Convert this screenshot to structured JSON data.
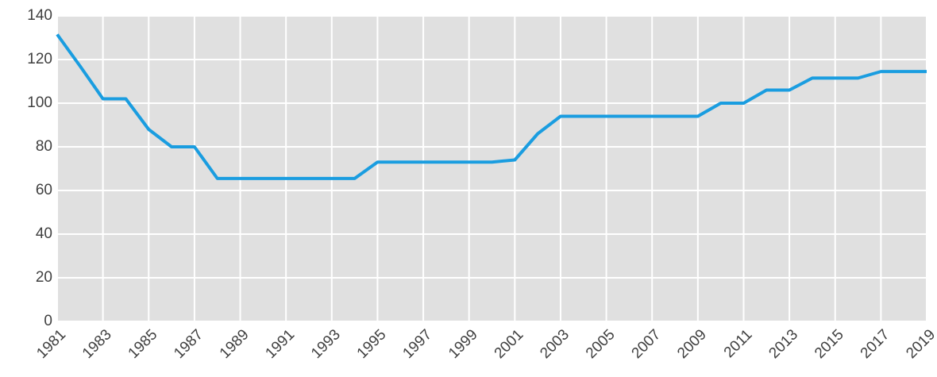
{
  "chart_data": {
    "type": "line",
    "x": [
      1981,
      1982,
      1983,
      1984,
      1985,
      1986,
      1987,
      1988,
      1989,
      1990,
      1991,
      1992,
      1993,
      1994,
      1995,
      1996,
      1997,
      1998,
      1999,
      2000,
      2001,
      2002,
      2003,
      2004,
      2005,
      2006,
      2007,
      2008,
      2009,
      2010,
      2011,
      2012,
      2013,
      2014,
      2015,
      2016,
      2017,
      2018,
      2019
    ],
    "series": [
      {
        "color": "#1a9de0",
        "values": [
          131.5,
          117,
          102,
          102,
          88,
          80,
          80,
          65.5,
          65.5,
          65.5,
          65.5,
          65.5,
          65.5,
          65.5,
          73,
          73,
          73,
          73,
          73,
          73,
          74,
          86,
          94,
          94,
          94,
          94,
          94,
          94,
          94,
          100,
          100,
          106,
          106,
          111.5,
          111.5,
          111.5,
          114.5,
          114.5,
          114.5
        ]
      }
    ],
    "xlim": [
      1981,
      2019
    ],
    "xticks": [
      1981,
      1983,
      1985,
      1987,
      1989,
      1991,
      1993,
      1995,
      1997,
      1999,
      2001,
      2003,
      2005,
      2007,
      2009,
      2011,
      2013,
      2015,
      2017,
      2019
    ],
    "ylim": [
      0,
      140
    ],
    "yticks": [
      0,
      20,
      40,
      60,
      80,
      100,
      120,
      140
    ],
    "grid": true
  }
}
